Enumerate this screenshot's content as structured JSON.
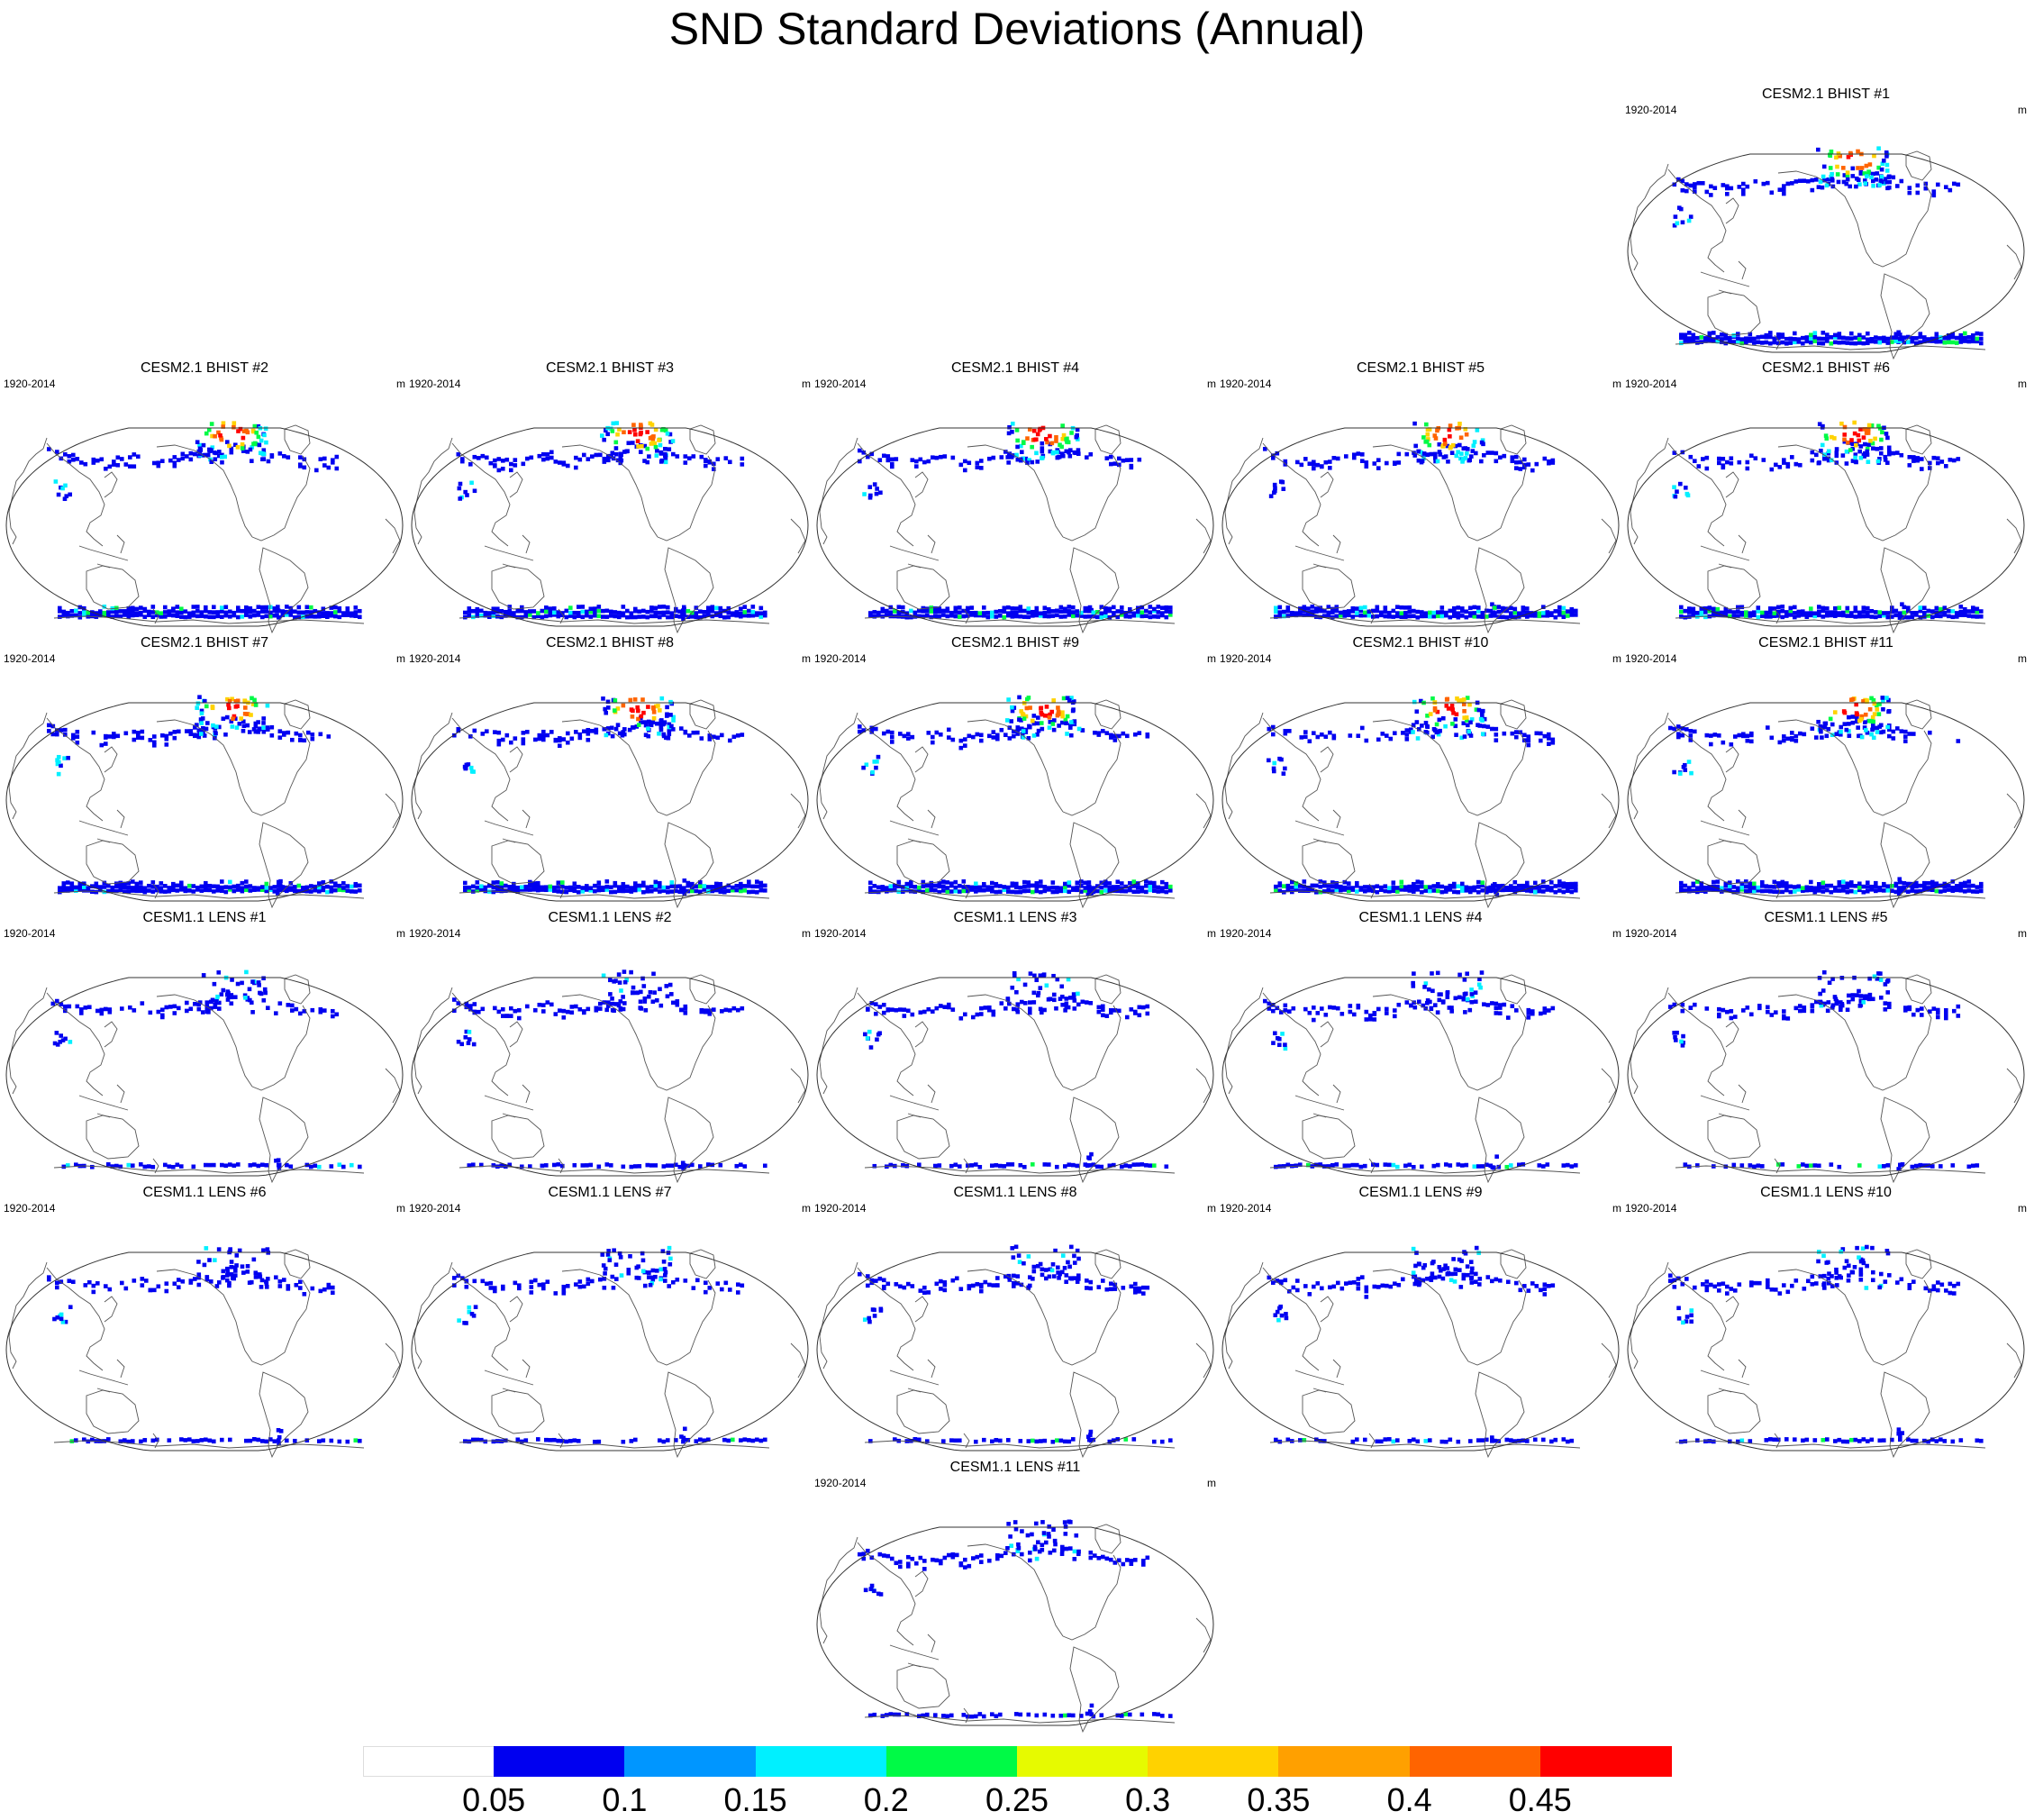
{
  "title": "SND Standard Deviations (Annual)",
  "panels": [
    {
      "title": "CESM2.1 BHIST #1",
      "period": "1920-2014",
      "units": "m",
      "family": "bhist",
      "member": 1
    },
    {
      "title": "CESM2.1 BHIST #2",
      "period": "1920-2014",
      "units": "m",
      "family": "bhist",
      "member": 2
    },
    {
      "title": "CESM2.1 BHIST #3",
      "period": "1920-2014",
      "units": "m",
      "family": "bhist",
      "member": 3
    },
    {
      "title": "CESM2.1 BHIST #4",
      "period": "1920-2014",
      "units": "m",
      "family": "bhist",
      "member": 4
    },
    {
      "title": "CESM2.1 BHIST #5",
      "period": "1920-2014",
      "units": "m",
      "family": "bhist",
      "member": 5
    },
    {
      "title": "CESM2.1 BHIST #6",
      "period": "1920-2014",
      "units": "m",
      "family": "bhist",
      "member": 6
    },
    {
      "title": "CESM2.1 BHIST #7",
      "period": "1920-2014",
      "units": "m",
      "family": "bhist",
      "member": 7
    },
    {
      "title": "CESM2.1 BHIST #8",
      "period": "1920-2014",
      "units": "m",
      "family": "bhist",
      "member": 8
    },
    {
      "title": "CESM2.1 BHIST #9",
      "period": "1920-2014",
      "units": "m",
      "family": "bhist",
      "member": 9
    },
    {
      "title": "CESM2.1 BHIST #10",
      "period": "1920-2014",
      "units": "m",
      "family": "bhist",
      "member": 10
    },
    {
      "title": "CESM2.1 BHIST #11",
      "period": "1920-2014",
      "units": "m",
      "family": "bhist",
      "member": 11
    },
    {
      "title": "CESM1.1 LENS #1",
      "period": "1920-2014",
      "units": "m",
      "family": "lens",
      "member": 1
    },
    {
      "title": "CESM1.1 LENS #2",
      "period": "1920-2014",
      "units": "m",
      "family": "lens",
      "member": 2
    },
    {
      "title": "CESM1.1 LENS #3",
      "period": "1920-2014",
      "units": "m",
      "family": "lens",
      "member": 3
    },
    {
      "title": "CESM1.1 LENS #4",
      "period": "1920-2014",
      "units": "m",
      "family": "lens",
      "member": 4
    },
    {
      "title": "CESM1.1 LENS #5",
      "period": "1920-2014",
      "units": "m",
      "family": "lens",
      "member": 5
    },
    {
      "title": "CESM1.1 LENS #6",
      "period": "1920-2014",
      "units": "m",
      "family": "lens",
      "member": 6
    },
    {
      "title": "CESM1.1 LENS #7",
      "period": "1920-2014",
      "units": "m",
      "family": "lens",
      "member": 7
    },
    {
      "title": "CESM1.1 LENS #8",
      "period": "1920-2014",
      "units": "m",
      "family": "lens",
      "member": 8
    },
    {
      "title": "CESM1.1 LENS #9",
      "period": "1920-2014",
      "units": "m",
      "family": "lens",
      "member": 9
    },
    {
      "title": "CESM1.1 LENS #10",
      "period": "1920-2014",
      "units": "m",
      "family": "lens",
      "member": 10
    },
    {
      "title": "CESM1.1 LENS #11",
      "period": "1920-2014",
      "units": "m",
      "family": "lens",
      "member": 11
    }
  ],
  "colorbar": {
    "labels": [
      "0.05",
      "0.1",
      "0.15",
      "0.2",
      "0.25",
      "0.3",
      "0.35",
      "0.4",
      "0.45"
    ],
    "colors": [
      "#ffffff",
      "#0000f0",
      "#0096ff",
      "#00f0ff",
      "#00fa46",
      "#e6fa00",
      "#ffd200",
      "#ffa000",
      "#ff6400",
      "#ff0000"
    ]
  }
}
